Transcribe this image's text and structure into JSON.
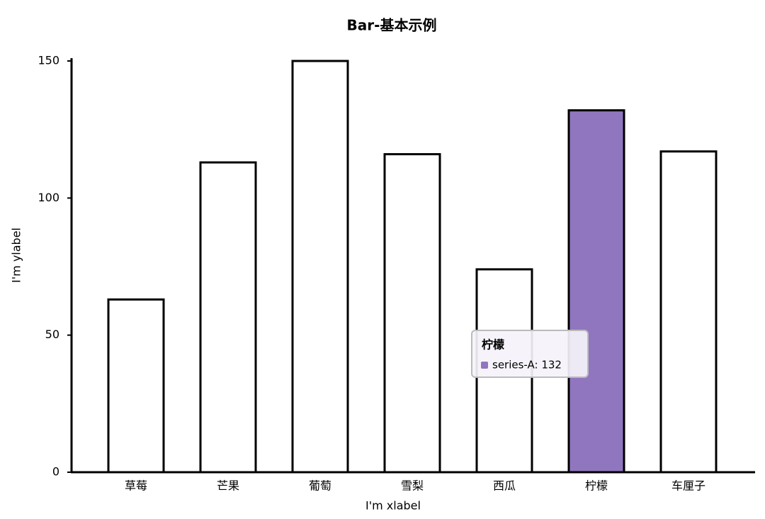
{
  "chart_data": {
    "type": "bar",
    "title": "Bar-基本示例",
    "x_label": "I'm xlabel",
    "y_label": "I'm ylabel",
    "categories": [
      "草莓",
      "芒果",
      "葡萄",
      "雪梨",
      "西瓜",
      "柠檬",
      "车厘子"
    ],
    "series": [
      {
        "name": "series-A",
        "color": "#ffffff",
        "values": [
          63,
          113,
          150,
          116,
          74,
          132,
          117
        ]
      }
    ],
    "highlight": 5,
    "highlight_color": "#9076bf",
    "ylim": [
      0,
      150
    ],
    "yticks": [
      0,
      50,
      100,
      150
    ],
    "tooltip": {
      "title": "柠檬",
      "text": "series-A: 132"
    }
  }
}
